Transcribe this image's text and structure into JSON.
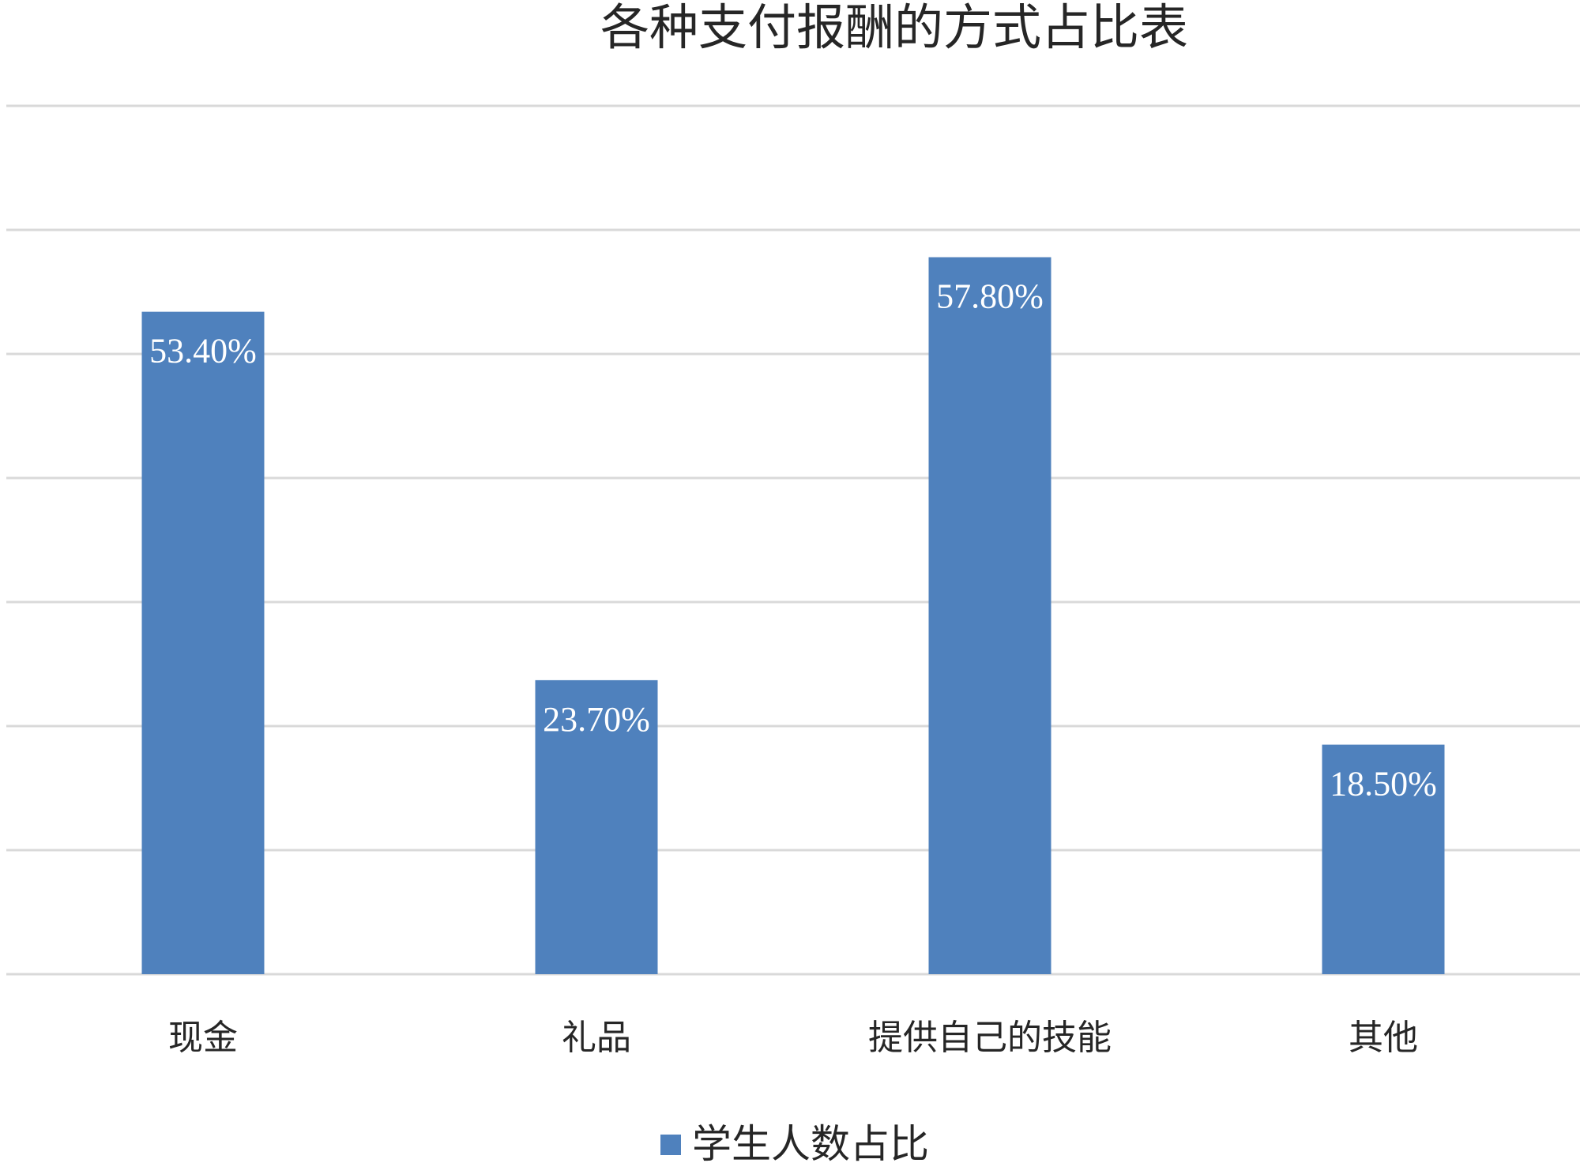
{
  "chart_data": {
    "type": "bar",
    "title": "各种支付报酬的方式占比表",
    "categories": [
      "现金",
      "礼品",
      "提供自己的技能",
      "其他"
    ],
    "series": [
      {
        "name": "学生人数占比",
        "values": [
          53.4,
          23.7,
          57.8,
          18.5
        ],
        "labels": [
          "53.40%",
          "23.70%",
          "57.80%",
          "18.50%"
        ],
        "color": "#4f81bd"
      }
    ],
    "ylim": [
      0,
      70
    ],
    "grid": true,
    "gridline_color": "#d9d9d9",
    "legend_position": "bottom"
  }
}
